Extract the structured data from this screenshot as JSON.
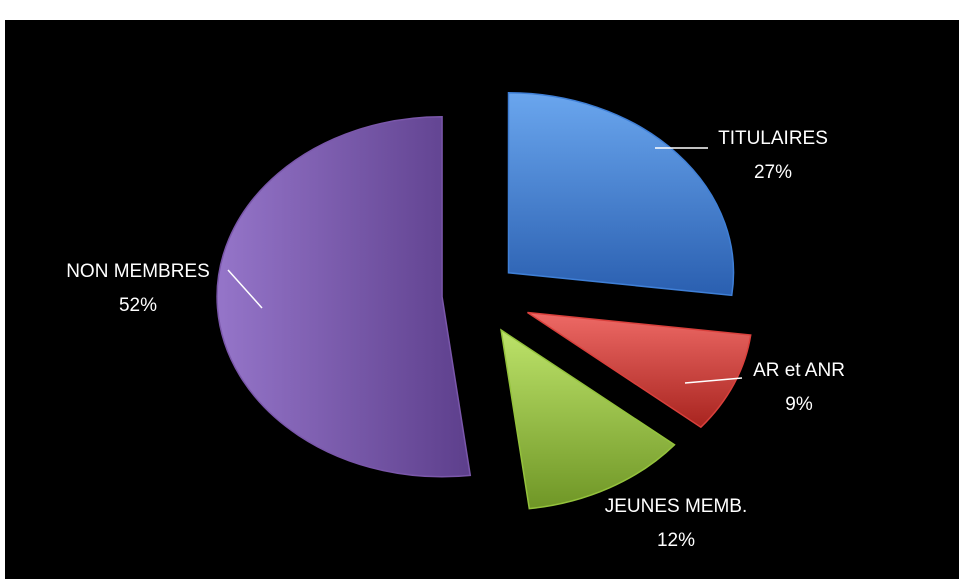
{
  "chart_data": {
    "type": "pie",
    "title": "",
    "slices": [
      {
        "name": "TITULAIRES",
        "pct_label": "27%",
        "value": 27,
        "color": "#3f7fd6"
      },
      {
        "name": "AR et ANR",
        "pct_label": "9%",
        "value": 9,
        "color": "#d9403c"
      },
      {
        "name": "JEUNES MEMB.",
        "pct_label": "12%",
        "value": 12,
        "color": "#94c23c"
      },
      {
        "name": "NON MEMBRES",
        "pct_label": "52%",
        "value": 52,
        "color": "#7a57aa"
      }
    ],
    "exploded": true,
    "legend": "none"
  },
  "colors": {
    "background": "#000000",
    "label_text": "#ffffff",
    "leader_line": "#ffffff"
  }
}
